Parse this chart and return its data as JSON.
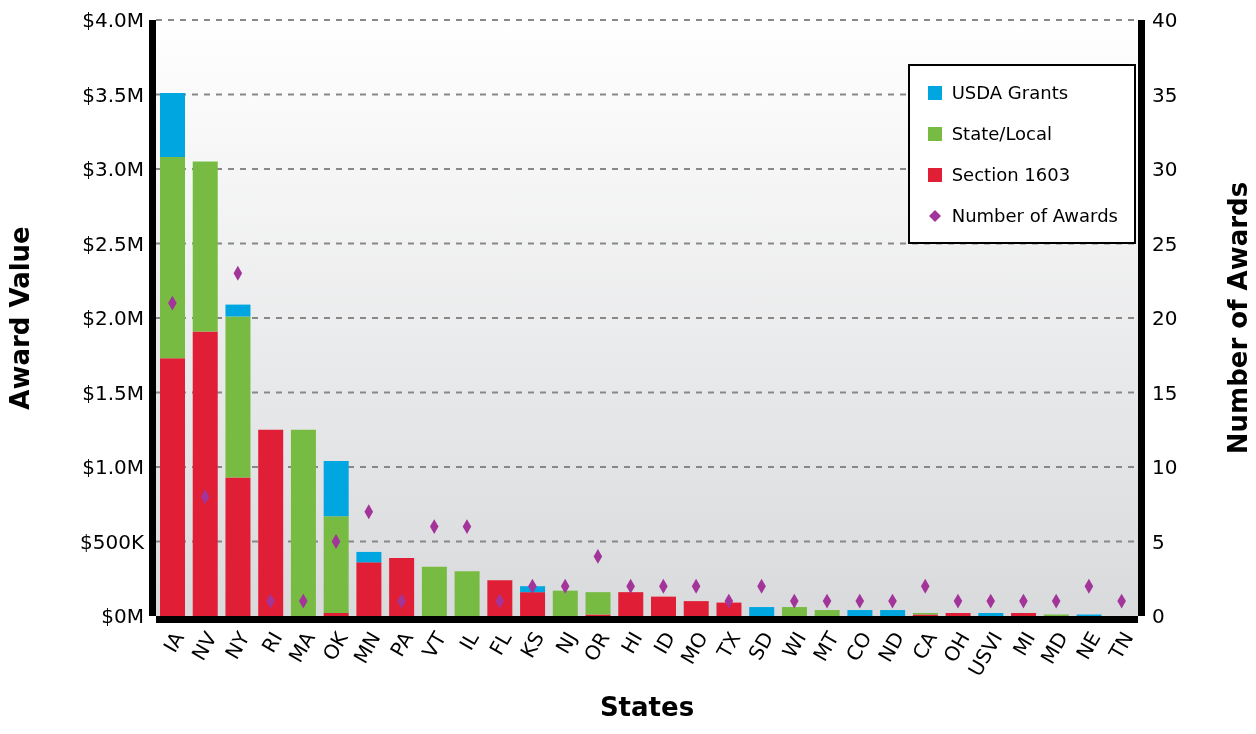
{
  "chart_data": {
    "type": "bar",
    "stacked": true,
    "xlabel": "States",
    "ylabel": "Award Value",
    "y2label": "Number of Awards",
    "categories": [
      "IA",
      "NV",
      "NY",
      "RI",
      "MA",
      "OK",
      "MN",
      "PA",
      "VT",
      "IL",
      "FL",
      "KS",
      "NJ",
      "OR",
      "HI",
      "ID",
      "MO",
      "TX",
      "SD",
      "WI",
      "MT",
      "CO",
      "ND",
      "CA",
      "OH",
      "USVI",
      "MI",
      "MD",
      "NE",
      "TN"
    ],
    "series": [
      {
        "name": "Section 1603",
        "color": "#e01f36",
        "values": [
          1730000,
          1910000,
          930000,
          1250000,
          0,
          20000,
          360000,
          390000,
          0,
          0,
          240000,
          160000,
          0,
          10000,
          160000,
          130000,
          100000,
          90000,
          0,
          0,
          0,
          0,
          0,
          10000,
          20000,
          0,
          20000,
          0,
          0,
          0
        ]
      },
      {
        "name": "State/Local",
        "color": "#77bb43",
        "values": [
          1350000,
          1140000,
          1080000,
          0,
          1250000,
          650000,
          0,
          0,
          330000,
          300000,
          0,
          0,
          170000,
          150000,
          0,
          0,
          0,
          0,
          0,
          60000,
          40000,
          0,
          0,
          10000,
          0,
          0,
          0,
          10000,
          0,
          0
        ]
      },
      {
        "name": "USDA Grants",
        "color": "#00a6e0",
        "values": [
          430000,
          0,
          80000,
          0,
          0,
          370000,
          70000,
          0,
          0,
          0,
          0,
          40000,
          0,
          0,
          0,
          0,
          0,
          0,
          60000,
          0,
          0,
          40000,
          40000,
          0,
          0,
          20000,
          0,
          0,
          10000,
          0
        ]
      },
      {
        "name": "Number of Awards",
        "type": "scatter",
        "axis": "y2",
        "color": "#a2349a",
        "values": [
          21,
          8,
          23,
          1,
          1,
          5,
          7,
          1,
          6,
          6,
          1,
          2,
          2,
          4,
          2,
          2,
          2,
          1,
          2,
          1,
          1,
          1,
          1,
          2,
          1,
          1,
          1,
          1,
          2,
          1
        ]
      }
    ],
    "ylim": [
      0,
      4000000
    ],
    "yticks": [
      {
        "value": 0,
        "label": "$0M"
      },
      {
        "value": 500000,
        "label": "$500K"
      },
      {
        "value": 1000000,
        "label": "$1.0M"
      },
      {
        "value": 1500000,
        "label": "$1.5M"
      },
      {
        "value": 2000000,
        "label": "$2.0M"
      },
      {
        "value": 2500000,
        "label": "$2.5M"
      },
      {
        "value": 3000000,
        "label": "$3.0M"
      },
      {
        "value": 3500000,
        "label": "$3.5M"
      },
      {
        "value": 4000000,
        "label": "$4.0M"
      }
    ],
    "y2lim": [
      0,
      40
    ],
    "y2ticks": [
      0,
      5,
      10,
      15,
      20,
      25,
      30,
      35,
      40
    ],
    "grid": "y",
    "legend": "top right",
    "marker": "diamond"
  }
}
